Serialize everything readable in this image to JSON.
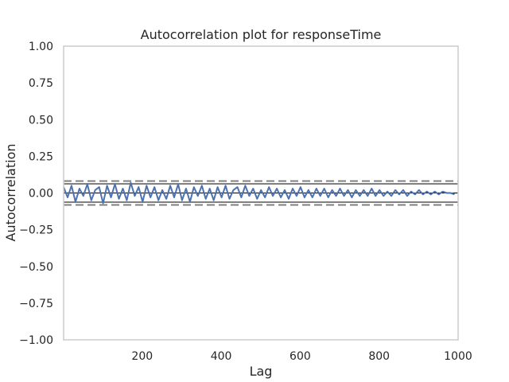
{
  "chart_data": {
    "type": "line",
    "title": "Autocorrelation plot for responseTime",
    "xlabel": "Lag",
    "ylabel": "Autocorrelation",
    "xlim": [
      1,
      1000
    ],
    "ylim": [
      -1.0,
      1.0
    ],
    "x_ticks": [
      200,
      400,
      600,
      800,
      1000
    ],
    "x_tick_labels": [
      "200",
      "400",
      "600",
      "800",
      "1000"
    ],
    "y_ticks": [
      1.0,
      0.75,
      0.5,
      0.25,
      0.0,
      -0.25,
      -0.5,
      -0.75,
      -1.0
    ],
    "y_tick_labels": [
      "1.00",
      "0.75",
      "0.50",
      "0.25",
      "0.00",
      "−0.25",
      "−0.50",
      "−0.75",
      "−1.00"
    ],
    "grid": false,
    "reference_lines": {
      "confidence_99": [
        0.081,
        -0.081
      ],
      "confidence_95": [
        0.062,
        -0.062
      ],
      "zero": 0.0
    },
    "series": [
      {
        "color": "#4c72b0",
        "x_start": 1,
        "x_step": 10,
        "values": [
          0.04,
          -0.03,
          0.05,
          -0.06,
          0.03,
          -0.02,
          0.06,
          -0.05,
          0.02,
          0.04,
          -0.07,
          0.05,
          -0.03,
          0.06,
          -0.04,
          0.03,
          -0.05,
          0.07,
          -0.02,
          0.04,
          -0.06,
          0.05,
          -0.03,
          0.04,
          -0.05,
          0.02,
          -0.04,
          0.05,
          -0.03,
          0.06,
          -0.05,
          0.03,
          -0.06,
          0.04,
          -0.02,
          0.05,
          -0.04,
          0.03,
          -0.05,
          0.04,
          -0.03,
          0.05,
          -0.04,
          0.02,
          0.04,
          -0.03,
          0.05,
          -0.02,
          0.03,
          -0.04,
          0.02,
          -0.03,
          0.04,
          -0.02,
          0.03,
          -0.03,
          0.02,
          -0.04,
          0.03,
          -0.02,
          0.04,
          -0.03,
          0.02,
          -0.03,
          0.03,
          -0.02,
          0.03,
          -0.03,
          0.02,
          -0.02,
          0.03,
          -0.02,
          0.02,
          -0.03,
          0.02,
          -0.02,
          0.02,
          -0.02,
          0.03,
          -0.02,
          0.02,
          -0.02,
          0.01,
          -0.02,
          0.02,
          -0.01,
          0.02,
          -0.02,
          0.01,
          -0.01,
          0.02,
          -0.01,
          0.01,
          -0.01,
          0.01,
          -0.01,
          0.01,
          0.0,
          0.0,
          -0.01
        ]
      }
    ]
  }
}
